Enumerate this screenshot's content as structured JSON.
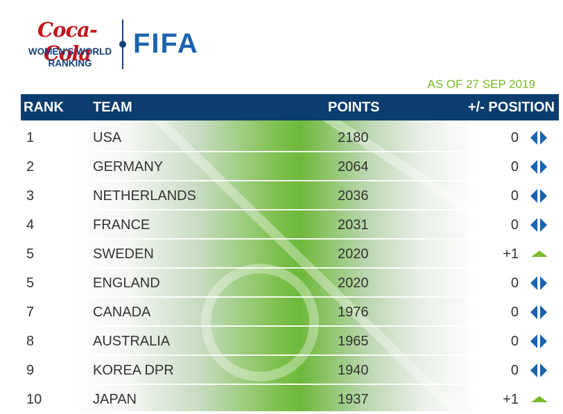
{
  "logo": {
    "sponsor_script": "Coca-Cola",
    "line1": "WOMEN'S WORLD",
    "line2": "RANKING",
    "fifa": "FIFA"
  },
  "as_of": "AS OF 27 SEP 2019",
  "headers": {
    "rank": "RANK",
    "team": "TEAM",
    "points": "POINTS",
    "position_change": "+/- POSITION"
  },
  "colors": {
    "header_bg": "#0c3d6e",
    "accent_green": "#79b92a",
    "arrow_blue": "#1b63ac"
  },
  "rows": [
    {
      "rank": "1",
      "team": "USA",
      "points": "2180",
      "change": "0",
      "icon": "no-change-arrows-icon"
    },
    {
      "rank": "2",
      "team": "GERMANY",
      "points": "2064",
      "change": "0",
      "icon": "no-change-arrows-icon"
    },
    {
      "rank": "3",
      "team": "NETHERLANDS",
      "points": "2036",
      "change": "0",
      "icon": "no-change-arrows-icon"
    },
    {
      "rank": "4",
      "team": "FRANCE",
      "points": "2031",
      "change": "0",
      "icon": "no-change-arrows-icon"
    },
    {
      "rank": "5",
      "team": "SWEDEN",
      "points": "2020",
      "change": "+1",
      "icon": "up-arrow-icon"
    },
    {
      "rank": "5",
      "team": "ENGLAND",
      "points": "2020",
      "change": "0",
      "icon": "no-change-arrows-icon"
    },
    {
      "rank": "7",
      "team": "CANADA",
      "points": "1976",
      "change": "0",
      "icon": "no-change-arrows-icon"
    },
    {
      "rank": "8",
      "team": "AUSTRALIA",
      "points": "1965",
      "change": "0",
      "icon": "no-change-arrows-icon"
    },
    {
      "rank": "9",
      "team": "KOREA DPR",
      "points": "1940",
      "change": "0",
      "icon": "no-change-arrows-icon"
    },
    {
      "rank": "10",
      "team": "JAPAN",
      "points": "1937",
      "change": "+1",
      "icon": "up-arrow-icon"
    }
  ]
}
